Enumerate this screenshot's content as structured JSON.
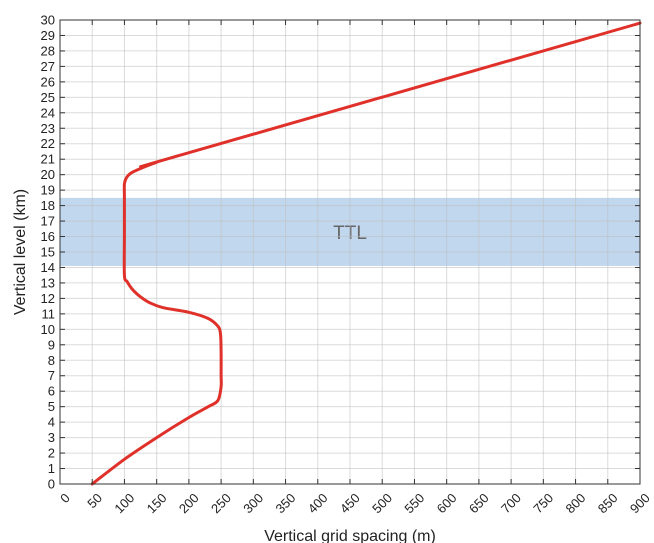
{
  "chart_data": {
    "type": "line",
    "title": "",
    "xlabel": "Vertical grid spacing (m)",
    "ylabel": "Vertical level (km)",
    "xlim": [
      0,
      900
    ],
    "ylim": [
      0,
      30
    ],
    "x_ticks": [
      0,
      50,
      100,
      150,
      200,
      250,
      300,
      350,
      400,
      450,
      500,
      550,
      600,
      650,
      700,
      750,
      800,
      850,
      900
    ],
    "y_ticks": [
      0,
      1,
      2,
      3,
      4,
      5,
      6,
      7,
      8,
      9,
      10,
      11,
      12,
      13,
      14,
      15,
      16,
      17,
      18,
      19,
      20,
      21,
      22,
      23,
      24,
      25,
      26,
      27,
      28,
      29,
      30
    ],
    "grid": true,
    "band": {
      "label": "TTL",
      "y_range": [
        14.1,
        18.5
      ],
      "color": "#a9c8e8"
    },
    "series": [
      {
        "color": "#e0302a",
        "x": [
          50,
          100,
          150,
          200,
          230,
          245,
          250,
          250,
          250,
          249,
          245,
          230,
          200,
          160,
          140,
          125,
          112,
          104,
          100,
          100,
          100,
          100,
          103,
          110,
          125,
          150,
          190,
          900
        ],
        "y": [
          0.0,
          1.6,
          3.0,
          4.3,
          5.0,
          5.4,
          6.3,
          7.0,
          8.5,
          9.7,
          10.2,
          10.7,
          11.1,
          11.4,
          11.7,
          12.1,
          12.6,
          13.1,
          13.5,
          16.0,
          18.5,
          19.4,
          19.8,
          20.1,
          20.4,
          20.8,
          21.3,
          29.8
        ]
      }
    ]
  }
}
